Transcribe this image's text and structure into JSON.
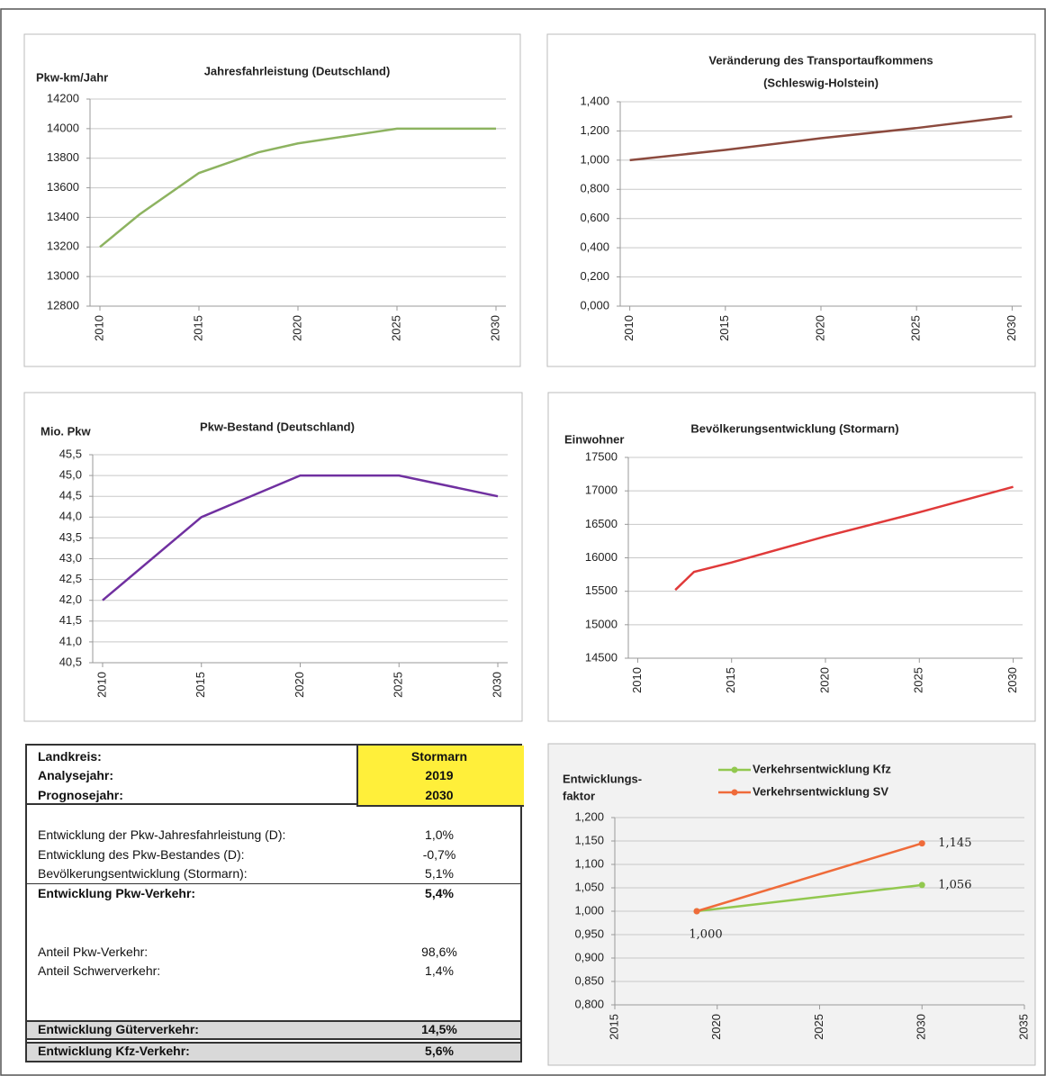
{
  "chart_data": [
    {
      "type": "line",
      "title": "Jahresfahrleistung (Deutschland)",
      "ylabel": [
        "Pkw-km/Jahr"
      ],
      "x": [
        2010,
        2012,
        2015,
        2018,
        2020,
        2023,
        2025,
        2030
      ],
      "series": [
        {
          "color": "#8db360",
          "values": [
            13200,
            13420,
            13700,
            13840,
            13900,
            13960,
            14000,
            14000
          ]
        }
      ],
      "xlim": [
        2009.5,
        2030.5
      ],
      "xticks": [
        2010,
        2015,
        2020,
        2025,
        2030
      ],
      "ylim": [
        12800,
        14200
      ],
      "yticks": [
        12800,
        13000,
        13200,
        13400,
        13600,
        13800,
        14000,
        14200
      ],
      "grid": true
    },
    {
      "type": "line",
      "title": [
        "Veränderung des Transportaufkommens",
        "(Schleswig-Holstein)"
      ],
      "x": [
        2010,
        2015,
        2020,
        2025,
        2030
      ],
      "series": [
        {
          "color": "#8c4a3e",
          "values": [
            1.0,
            1.07,
            1.15,
            1.22,
            1.3
          ]
        }
      ],
      "xlim": [
        2009.5,
        2030.5
      ],
      "xticks": [
        2010,
        2015,
        2020,
        2025,
        2030
      ],
      "ylim": [
        0,
        1.4
      ],
      "yticks": [
        {
          "value": 0,
          "label": "0,000"
        },
        {
          "value": 0.2,
          "label": "0,200"
        },
        {
          "value": 0.4,
          "label": "0,400"
        },
        {
          "value": 0.6,
          "label": "0,600"
        },
        {
          "value": 0.8,
          "label": "0,800"
        },
        {
          "value": 1.0,
          "label": "1,000"
        },
        {
          "value": 1.2,
          "label": "1,200"
        },
        {
          "value": 1.4,
          "label": "1,400"
        }
      ],
      "grid": true
    },
    {
      "type": "line",
      "title": "Pkw-Bestand (Deutschland)",
      "ylabel": [
        "Mio. Pkw"
      ],
      "x": [
        2010,
        2015,
        2020,
        2025,
        2030
      ],
      "series": [
        {
          "color": "#7030a0",
          "values": [
            42.0,
            44.0,
            45.0,
            45.0,
            44.5
          ]
        }
      ],
      "xlim": [
        2009.5,
        2030.5
      ],
      "xticks": [
        2010,
        2015,
        2020,
        2025,
        2030
      ],
      "ylim": [
        40.5,
        45.5
      ],
      "yticks": [
        {
          "value": 40.5,
          "label": "40,5"
        },
        {
          "value": 41,
          "label": "41,0"
        },
        {
          "value": 41.5,
          "label": "41,5"
        },
        {
          "value": 42,
          "label": "42,0"
        },
        {
          "value": 42.5,
          "label": "42,5"
        },
        {
          "value": 43,
          "label": "43,0"
        },
        {
          "value": 43.5,
          "label": "43,5"
        },
        {
          "value": 44,
          "label": "44,0"
        },
        {
          "value": 44.5,
          "label": "44,5"
        },
        {
          "value": 45,
          "label": "45,0"
        },
        {
          "value": 45.5,
          "label": "45,5"
        }
      ],
      "grid": true
    },
    {
      "type": "line",
      "title": "Bevölkerungsentwicklung (Stormarn)",
      "ylabel": [
        "Einwohner"
      ],
      "x": [
        2012,
        2013,
        2015,
        2020,
        2025,
        2030
      ],
      "series": [
        {
          "color": "#e03a3a",
          "values": [
            15520,
            15790,
            15930,
            16320,
            16680,
            17060
          ]
        }
      ],
      "xlim": [
        2009.5,
        2030.5
      ],
      "xticks": [
        2010,
        2015,
        2020,
        2025,
        2030
      ],
      "ylim": [
        14500,
        17500
      ],
      "yticks": [
        14500,
        15000,
        15500,
        16000,
        16500,
        17000,
        17500
      ],
      "grid": true
    },
    {
      "type": "line",
      "ylabel": [
        "Entwicklungs-",
        "faktor"
      ],
      "markers": true,
      "legend": "top",
      "x": [
        2019,
        2030
      ],
      "series": [
        {
          "name": "Verkehrsentwicklung Kfz",
          "color": "#92c84f",
          "values": [
            1.0,
            1.056
          ],
          "value_labels": [
            "1,000",
            "1,056"
          ]
        },
        {
          "name": "Verkehrsentwicklung SV",
          "color": "#ef6b3a",
          "values": [
            1.0,
            1.145
          ],
          "value_labels": [
            null,
            "1,145"
          ]
        }
      ],
      "xlim": [
        2015,
        2035
      ],
      "xticks": [
        2015,
        2020,
        2025,
        2030,
        2035
      ],
      "ylim": [
        0.8,
        1.2
      ],
      "yticks": [
        {
          "value": 0.8,
          "label": "0,800"
        },
        {
          "value": 0.85,
          "label": "0,850"
        },
        {
          "value": 0.9,
          "label": "0,900"
        },
        {
          "value": 0.95,
          "label": "0,950"
        },
        {
          "value": 1.0,
          "label": "1,000"
        },
        {
          "value": 1.05,
          "label": "1,050"
        },
        {
          "value": 1.1,
          "label": "1,100"
        },
        {
          "value": 1.15,
          "label": "1,150"
        },
        {
          "value": 1.2,
          "label": "1,200"
        }
      ],
      "grid": true
    }
  ],
  "table": {
    "header": [
      [
        "Landkreis:",
        "Stormarn"
      ],
      [
        "Analysejahr:",
        "2019"
      ],
      [
        "Prognosejahr:",
        "2030"
      ]
    ],
    "rows": [
      [
        "Entwicklung der Pkw-Jahresfahrleistung (D):",
        "1,0%"
      ],
      [
        "Entwicklung des Pkw-Bestandes (D):",
        "-0,7%"
      ],
      [
        "Bevölkerungsentwicklung (Stormarn):",
        "5,1%"
      ],
      [
        "Entwicklung Pkw-Verkehr:",
        "5,4%"
      ],
      [
        "Anteil Pkw-Verkehr:",
        "98,6%"
      ],
      [
        "Anteil Schwerverkehr:",
        "1,4%"
      ],
      [
        "Entwicklung Güterverkehr:",
        "14,5%"
      ],
      [
        "Entwicklung Kfz-Verkehr:",
        "5,6%"
      ]
    ]
  }
}
